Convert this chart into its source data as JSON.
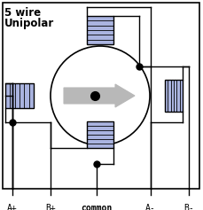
{
  "title_line1": "5 wire",
  "title_line2": "Unipolar",
  "title_fontsize": 8.5,
  "bg_color": "#ffffff",
  "border_color": "#000000",
  "coil_fill": "#aab4e0",
  "coil_stroke": "#000000",
  "circle_fill": "#ffffff",
  "circle_stroke": "#000000",
  "rotor_fill": "#b8b8b8",
  "rotor_stroke": "#606060",
  "dot_color": "#000000",
  "wire_color": "#000000",
  "label_color": "#000000",
  "labels": [
    "A+",
    "B+",
    "common",
    "A-",
    "B-"
  ],
  "fig_width": 2.29,
  "fig_height": 2.37
}
